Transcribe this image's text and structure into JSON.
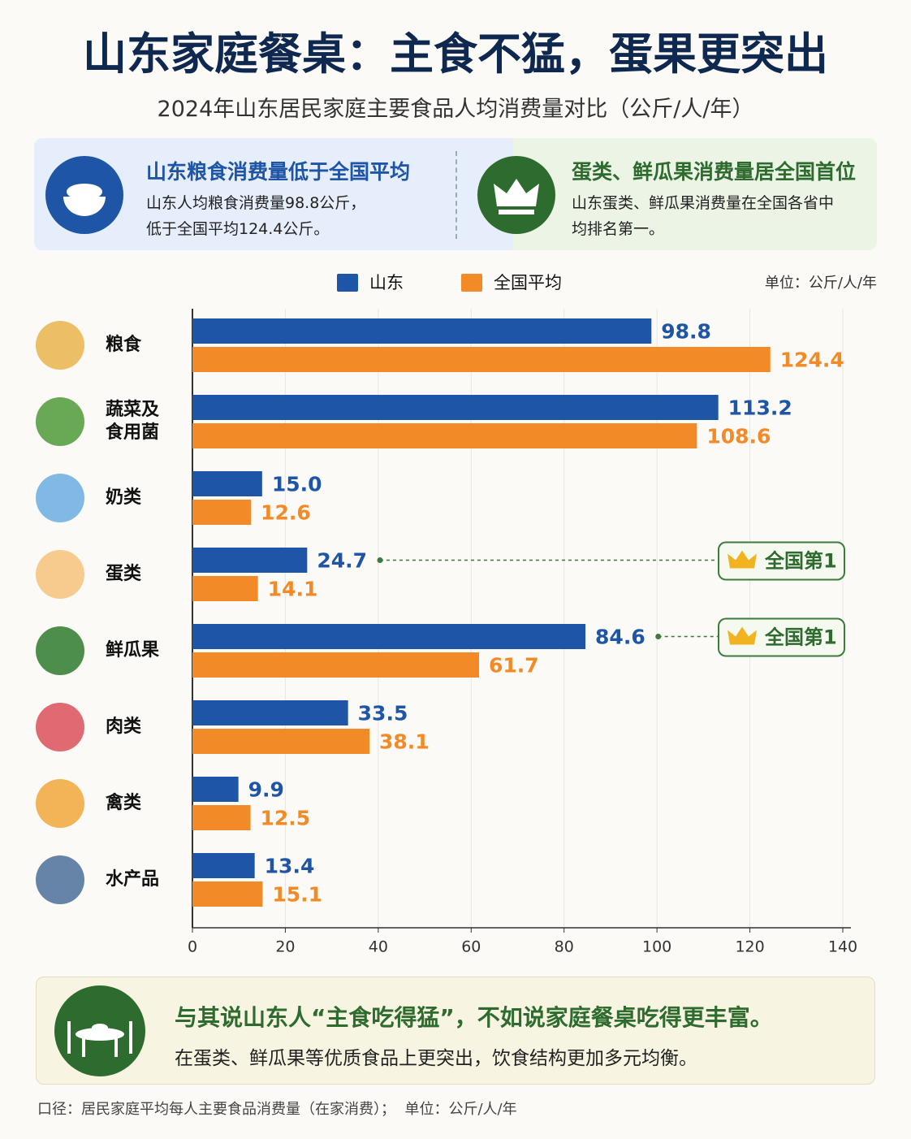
{
  "header": {
    "title": "山东家庭餐桌：主食不猛，蛋果更突出",
    "subtitle": "2024年山东居民家庭主要食品人均消费量对比（公斤/人/年）"
  },
  "cards": [
    {
      "title": "山东粮食消费量低于全国平均",
      "lines": [
        "山东人均粮食消费量98.8公斤，",
        "低于全国平均124.4公斤。"
      ]
    },
    {
      "title": "蛋类、鲜瓜果消费量居全国首位",
      "lines": [
        "山东蛋类、鲜瓜果消费量在全国各省中",
        "均排名第一。"
      ]
    }
  ],
  "chart_data": {
    "type": "hbar",
    "unit": "单位：公斤/人/年",
    "legend_position": "top",
    "grid": true,
    "categories": [
      "粮食",
      "蔬菜及食用菌",
      "奶类",
      "蛋类",
      "鲜瓜果",
      "肉类",
      "禽类",
      "水产品"
    ],
    "series": [
      {
        "name": "山东",
        "color": "#1f55a6",
        "values": [
          98.8,
          113.2,
          15.0,
          24.7,
          84.6,
          33.5,
          9.9,
          13.4
        ],
        "value_labels": [
          "98.8",
          "113.2",
          "15.0",
          "24.7",
          "84.6",
          "33.5",
          "9.9",
          "13.4"
        ]
      },
      {
        "name": "全国平均",
        "color": "#f28a27",
        "values": [
          124.4,
          108.6,
          12.6,
          14.1,
          61.7,
          38.1,
          12.5,
          15.1
        ],
        "value_labels": [
          "124.4",
          "108.6",
          "12.6",
          "14.1",
          "61.7",
          "38.1",
          "12.5",
          "15.1"
        ]
      }
    ],
    "xlim": [
      0,
      140
    ],
    "xticks": [
      0,
      20,
      40,
      60,
      80,
      100,
      120,
      140
    ],
    "annotations": [
      {
        "category": "蛋类",
        "label": "全国第1"
      },
      {
        "category": "鲜瓜果",
        "label": "全国第1"
      }
    ]
  },
  "conclusion": {
    "title": "与其说山东人“主食吃得猛”，不如说家庭餐桌吃得更丰富。",
    "text": "在蛋类、鲜瓜果等优质食品上更突出，饮食结构更加多元均衡。"
  },
  "footnote": "口径：居民家庭平均每人主要食品消费量（在家消费）；  单位：公斤/人/年"
}
